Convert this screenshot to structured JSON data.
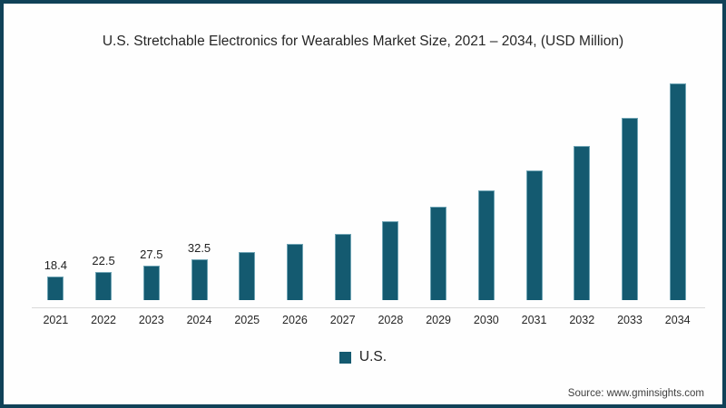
{
  "title": "U.S. Stretchable Electronics for Wearables Market Size, 2021 – 2034, (USD Million)",
  "legend": {
    "label": "U.S."
  },
  "source": {
    "text": "Source: www.gminsights.com"
  },
  "colors": {
    "bar": "#145a70",
    "frame": "#104258",
    "axis_line": "#d9d9d9"
  },
  "chart_data": {
    "type": "bar",
    "title": "U.S. Stretchable Electronics for Wearables Market Size, 2021 – 2034, (USD Million)",
    "xlabel": "",
    "ylabel": "USD Million",
    "categories": [
      "2021",
      "2022",
      "2023",
      "2024",
      "2025",
      "2026",
      "2027",
      "2028",
      "2029",
      "2030",
      "2031",
      "2032",
      "2033",
      "2034"
    ],
    "values": [
      18.4,
      22.5,
      27.5,
      32.5,
      37.8,
      44.6,
      52.3,
      62.4,
      74.0,
      87.0,
      102.7,
      122.0,
      144.4,
      171.4
    ],
    "data_labels": [
      "18.4",
      "22.5",
      "27.5",
      "32.5",
      "",
      "",
      "",
      "",
      "",
      "",
      "",
      "",
      "",
      ""
    ],
    "ylim": [
      0,
      185
    ],
    "grid": false,
    "legend_entries": [
      "U.S."
    ],
    "legend_position": "bottom",
    "bar_color": "#145a70"
  }
}
